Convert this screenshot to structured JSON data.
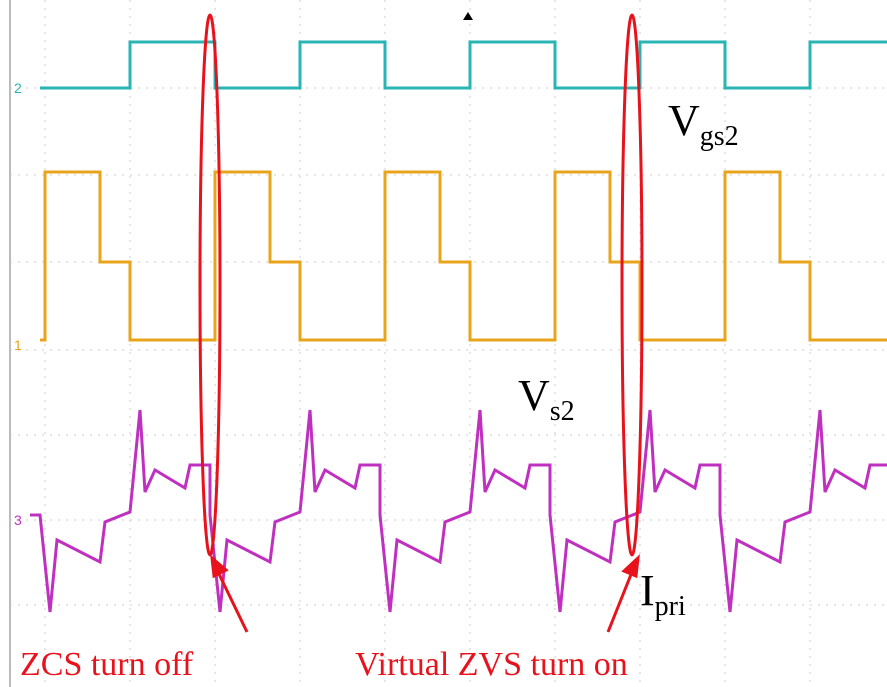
{
  "channels": [
    {
      "marker": "2"
    },
    {
      "marker": "1"
    },
    {
      "marker": "3"
    }
  ],
  "labels": [
    {
      "main": "V",
      "sub": "gs2"
    },
    {
      "main": "V",
      "sub": "s2"
    },
    {
      "main": "I",
      "sub": "pri"
    }
  ],
  "annotations": [
    "ZCS turn off",
    "Virtual ZVS turn on"
  ]
}
